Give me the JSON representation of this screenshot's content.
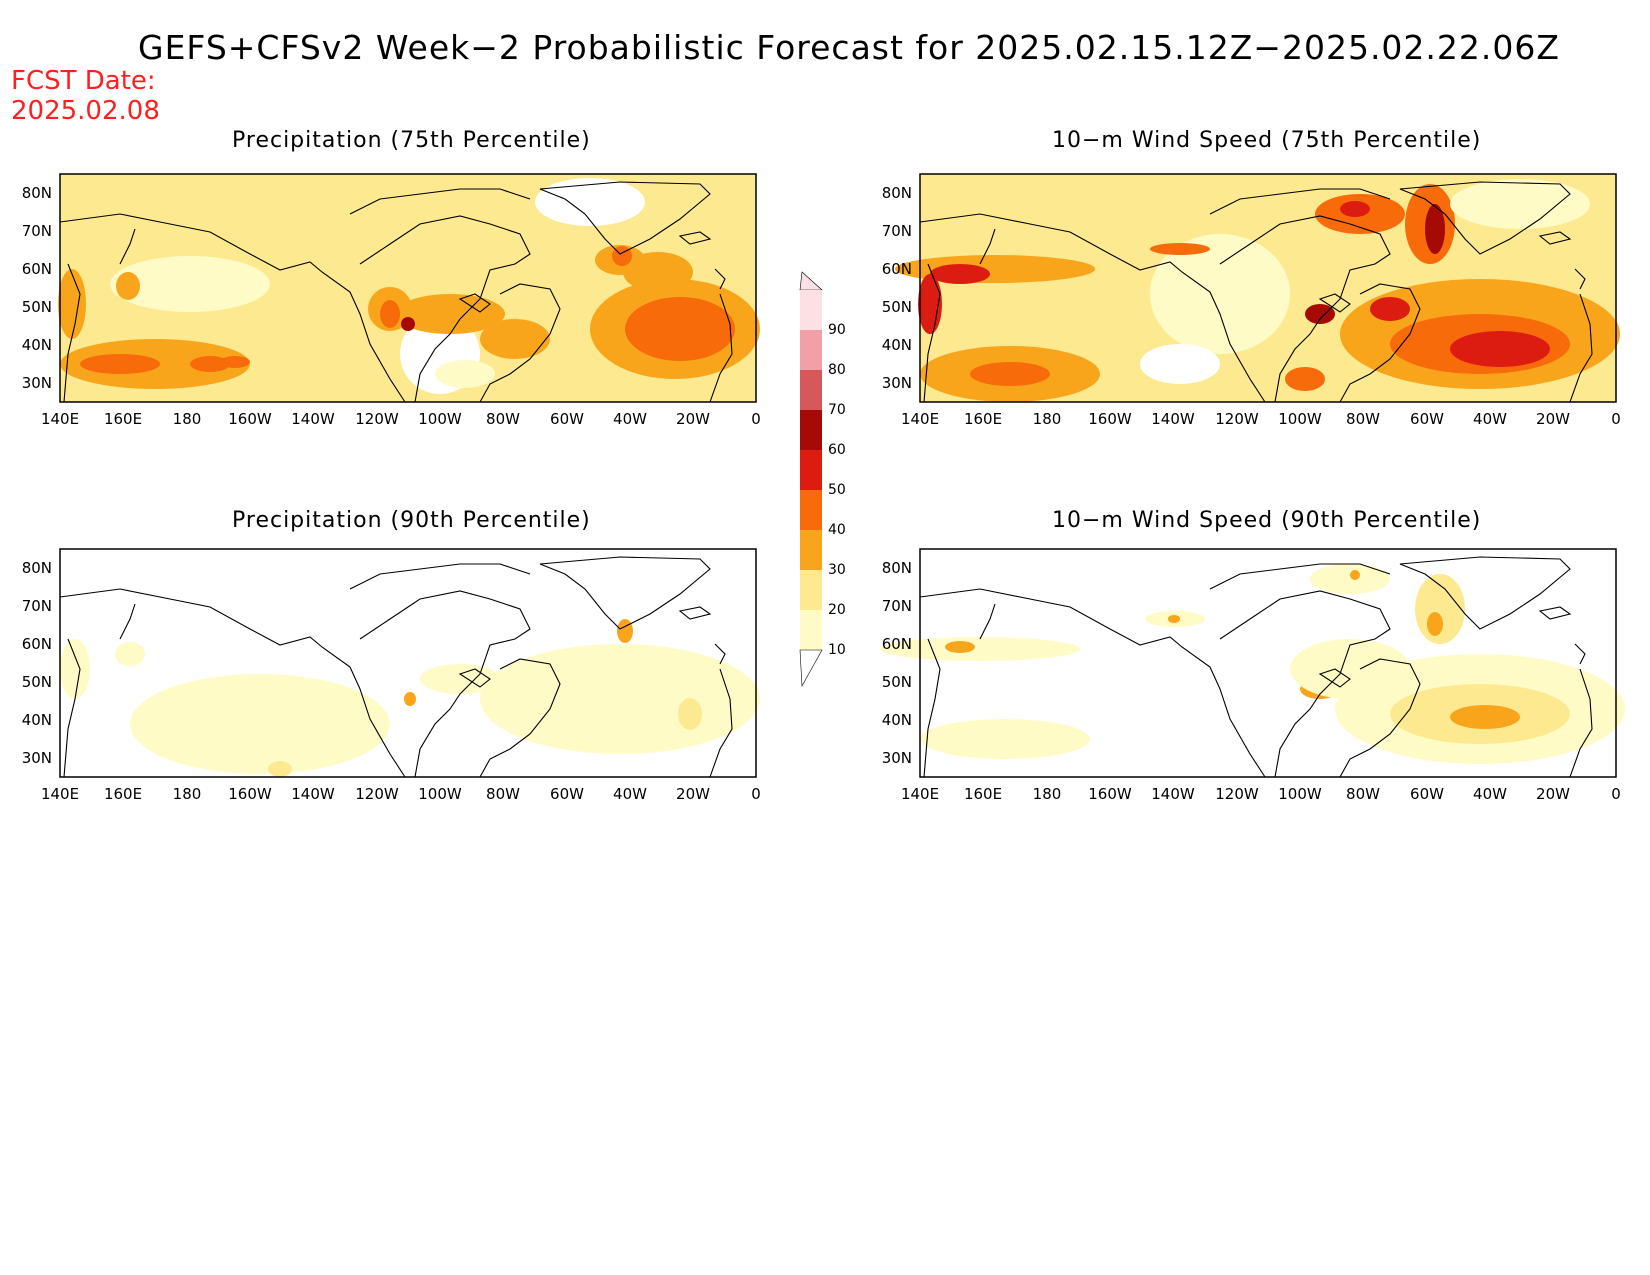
{
  "title": "GEFS+CFSv2 Week−2 Probabilistic Forecast for 2025.02.15.12Z−2025.02.22.06Z",
  "fcst_date_label": "FCST Date:",
  "fcst_date_value": "2025.02.08",
  "panels": [
    {
      "title": "Precipitation (75th Percentile)"
    },
    {
      "title": "10−m Wind Speed (75th Percentile)"
    },
    {
      "title": "Precipitation (90th Percentile)"
    },
    {
      "title": "10−m Wind Speed (90th Percentile)"
    }
  ],
  "lon_ticks": [
    "140E",
    "160E",
    "180",
    "160W",
    "140W",
    "120W",
    "100W",
    "80W",
    "60W",
    "40W",
    "20W",
    "0"
  ],
  "lat_ticks": [
    "80N",
    "70N",
    "60N",
    "50N",
    "40N",
    "30N"
  ],
  "colorbar": {
    "levels": [
      "10",
      "20",
      "30",
      "40",
      "50",
      "60",
      "70",
      "80",
      "90"
    ],
    "colors": [
      "#fffbc6",
      "#fde98f",
      "#f9a51c",
      "#f76b0b",
      "#dc1c10",
      "#a50a06",
      "#d6585a",
      "#f0a0a6",
      "#fde0e4"
    ]
  },
  "colors": {
    "title_text": "#000000",
    "fcst_text": "#ff1f1f"
  }
}
